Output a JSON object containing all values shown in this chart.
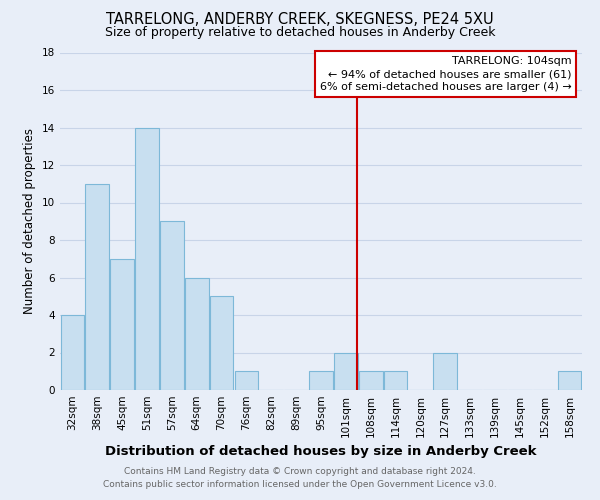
{
  "title": "TARRELONG, ANDERBY CREEK, SKEGNESS, PE24 5XU",
  "subtitle": "Size of property relative to detached houses in Anderby Creek",
  "xlabel": "Distribution of detached houses by size in Anderby Creek",
  "ylabel": "Number of detached properties",
  "bar_color": "#c8dff0",
  "bar_edge_color": "#7db8d8",
  "categories": [
    "32sqm",
    "38sqm",
    "45sqm",
    "51sqm",
    "57sqm",
    "64sqm",
    "70sqm",
    "76sqm",
    "82sqm",
    "89sqm",
    "95sqm",
    "101sqm",
    "108sqm",
    "114sqm",
    "120sqm",
    "127sqm",
    "133sqm",
    "139sqm",
    "145sqm",
    "152sqm",
    "158sqm"
  ],
  "values": [
    4,
    11,
    7,
    14,
    9,
    6,
    5,
    1,
    0,
    0,
    1,
    2,
    1,
    1,
    0,
    2,
    0,
    0,
    0,
    0,
    1
  ],
  "ylim": [
    0,
    18
  ],
  "yticks": [
    0,
    2,
    4,
    6,
    8,
    10,
    12,
    14,
    16,
    18
  ],
  "vline_color": "#cc0000",
  "annotation_title": "TARRELONG: 104sqm",
  "annotation_line1": "← 94% of detached houses are smaller (61)",
  "annotation_line2": "6% of semi-detached houses are larger (4) →",
  "footer1": "Contains HM Land Registry data © Crown copyright and database right 2024.",
  "footer2": "Contains public sector information licensed under the Open Government Licence v3.0.",
  "background_color": "#e8eef8",
  "grid_color": "#c8d4e8",
  "title_fontsize": 10.5,
  "subtitle_fontsize": 9,
  "xlabel_fontsize": 9.5,
  "ylabel_fontsize": 8.5,
  "tick_fontsize": 7.5,
  "footer_fontsize": 6.5,
  "annotation_fontsize": 8
}
